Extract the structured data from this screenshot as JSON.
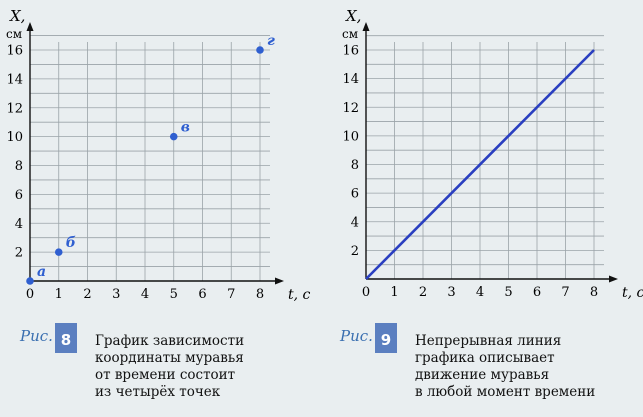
{
  "figures": [
    {
      "id": "fig8",
      "caption_prefix": "Рис.",
      "number": "8",
      "description": "График зависимости\nкоординаты муравья\nот времени состоит\nиз четырёх точек",
      "chart_data": {
        "type": "scatter",
        "title": "",
        "xlabel": "t, с",
        "ylabel_line1": "X,",
        "ylabel_line2": "см",
        "xlim": [
          0,
          8
        ],
        "ylim": [
          0,
          16
        ],
        "xticks": [
          0,
          1,
          2,
          3,
          4,
          5,
          6,
          7,
          8
        ],
        "yticks": [
          2,
          4,
          6,
          8,
          10,
          12,
          14,
          16
        ],
        "grid": true,
        "points": [
          {
            "label": "а",
            "x": 0,
            "y": 0
          },
          {
            "label": "б",
            "x": 1,
            "y": 2
          },
          {
            "label": "в",
            "x": 5,
            "y": 10
          },
          {
            "label": "г",
            "x": 8,
            "y": 16
          }
        ],
        "color": "#2f5fd0"
      }
    },
    {
      "id": "fig9",
      "caption_prefix": "Рис.",
      "number": "9",
      "description": "Непрерывная линия\nграфика описывает\nдвижение муравья\nв любой момент времени",
      "chart_data": {
        "type": "line",
        "title": "",
        "xlabel": "t, с",
        "ylabel_line1": "X,",
        "ylabel_line2": "см",
        "xlim": [
          0,
          8
        ],
        "ylim": [
          0,
          16
        ],
        "xticks": [
          0,
          1,
          2,
          3,
          4,
          5,
          6,
          7,
          8
        ],
        "yticks": [
          2,
          4,
          6,
          8,
          10,
          12,
          14,
          16
        ],
        "grid": true,
        "series": [
          {
            "x": [
              0,
              8
            ],
            "y": [
              0,
              16
            ]
          }
        ],
        "color": "#2a3fc0"
      }
    }
  ]
}
